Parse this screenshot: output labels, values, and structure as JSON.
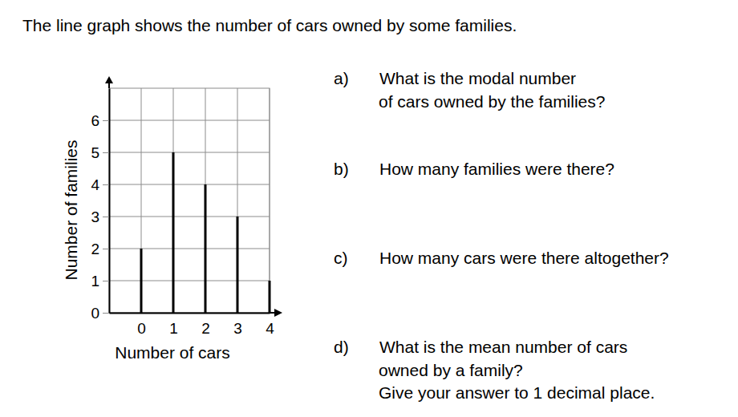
{
  "heading": "The line graph shows the number of cars owned by some families.",
  "questions": [
    {
      "label": "a)",
      "lines": [
        "What is the modal number",
        "of cars owned by the families?"
      ]
    },
    {
      "label": "b)",
      "lines": [
        "How many families were there?"
      ]
    },
    {
      "label": "c)",
      "lines": [
        "How many cars were there altogether?"
      ]
    },
    {
      "label": "d)",
      "lines": [
        "What is the mean number of cars",
        "owned by a family?",
        "Give your answer to 1 decimal place."
      ]
    }
  ],
  "chart_data": {
    "type": "stem",
    "x_label": "Number of cars",
    "y_label": "Number of families",
    "x": [
      0,
      1,
      2,
      3,
      4
    ],
    "values": [
      2,
      5,
      4,
      3,
      1
    ],
    "color": "#000000",
    "xlim": [
      -1,
      4
    ],
    "xticks": [
      0,
      1,
      2,
      3,
      4
    ],
    "ylim": [
      0,
      7
    ],
    "yticks": [
      0,
      1,
      2,
      3,
      4,
      5,
      6
    ],
    "grid": true
  }
}
